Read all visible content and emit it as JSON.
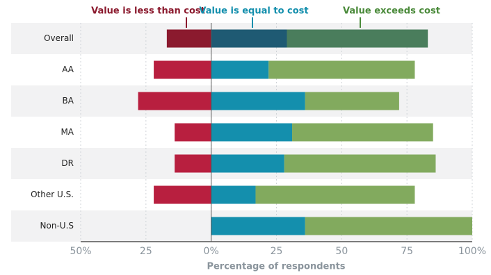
{
  "chart_data": {
    "type": "diverging-bar",
    "x_label": "Percentage of respondents",
    "categories": [
      "Overall",
      "AA",
      "BA",
      "MA",
      "DR",
      "Other U.S.",
      "Non-U.S"
    ],
    "series": [
      {
        "name": "Value is less than cost",
        "color": "#b81f3f",
        "colors": [
          "#8b1a2e",
          "#b81f3f",
          "#b81f3f",
          "#b81f3f",
          "#b81f3f",
          "#b81f3f",
          "#b81f3f"
        ],
        "legend_color": "#8b1a2e",
        "values": [
          -17,
          -22,
          -28,
          -14,
          -14,
          -22,
          0
        ]
      },
      {
        "name": "Value is equal to cost",
        "color": "#148fad",
        "colors": [
          "#1f5a73",
          "#148fad",
          "#148fad",
          "#148fad",
          "#148fad",
          "#148fad",
          "#148fad"
        ],
        "legend_color": "#148fad",
        "values": [
          29,
          22,
          36,
          31,
          28,
          17,
          36
        ]
      },
      {
        "name": "Value exceeds cost",
        "color": "#82aa5e",
        "colors": [
          "#4a7d5c",
          "#82aa5e",
          "#82aa5e",
          "#82aa5e",
          "#82aa5e",
          "#82aa5e",
          "#82aa5e"
        ],
        "legend_color": "#4a8a3a",
        "values": [
          54,
          56,
          36,
          54,
          58,
          61,
          64
        ]
      }
    ],
    "xlim": [
      -50,
      100
    ],
    "xticks": [
      {
        "value": -50,
        "label": "50%"
      },
      {
        "value": -25,
        "label": "25"
      },
      {
        "value": 0,
        "label": "0%"
      },
      25,
      50,
      75,
      {
        "value": 100,
        "label": "100%"
      }
    ],
    "grid": true,
    "band_color": "#f2f2f3"
  }
}
